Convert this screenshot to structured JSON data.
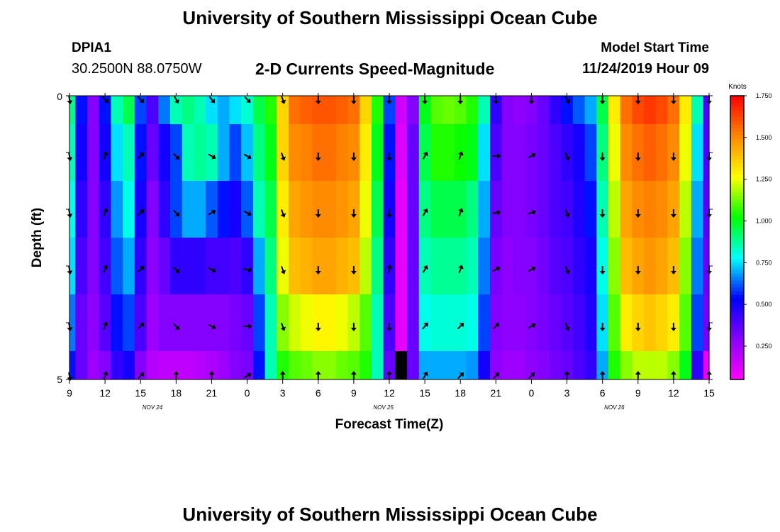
{
  "page": {
    "title": "University of Southern Mississippi Ocean Cube",
    "footer_title": "University of Southern Mississippi Ocean Cube",
    "station": "DPIA1",
    "coords": "30.2500N 88.0750W",
    "plot_title": "2-D Currents Speed-Magnitude",
    "model_start_label": "Model Start Time",
    "model_start_value": "11/24/2019 Hour 09"
  },
  "chart_data": {
    "type": "heatmap",
    "title": "2-D Currents Speed-Magnitude",
    "xlabel": "Forecast Time(Z)",
    "ylabel": "Depth (ft)",
    "x_tick_labels": [
      "9",
      "12",
      "15",
      "18",
      "21",
      "0",
      "3",
      "6",
      "9",
      "12",
      "15",
      "18",
      "21",
      "0",
      "3",
      "6",
      "9",
      "12",
      "15"
    ],
    "x_hours": [
      9,
      12,
      15,
      18,
      21,
      24,
      27,
      30,
      33,
      36,
      39,
      42,
      45,
      48,
      51,
      54,
      57,
      60,
      63
    ],
    "xlim": [
      9,
      63
    ],
    "date_labels": [
      {
        "hour": 16,
        "text": "NOV 24"
      },
      {
        "hour": 35.5,
        "text": "NOV 25"
      },
      {
        "hour": 55,
        "text": "NOV 26"
      }
    ],
    "y_tick_labels": [
      "0",
      "5"
    ],
    "ylim": [
      0,
      5
    ],
    "colorbar": {
      "label": "Knots",
      "ticks": [
        "0.250",
        "0.500",
        "0.750",
        "1.000",
        "1.250",
        "1.500",
        "1.750"
      ],
      "tick_values": [
        0.25,
        0.5,
        0.75,
        1.0,
        1.25,
        1.5,
        1.75
      ],
      "range": [
        0.05,
        1.75
      ],
      "colors": [
        "#ff00ff",
        "#8800ff",
        "#0000ff",
        "#00ffff",
        "#00ff00",
        "#ffff00",
        "#ff8800",
        "#ff0000"
      ]
    },
    "depth_layers": 5,
    "time_hours": [
      9,
      10,
      11,
      12,
      13,
      14,
      15,
      16,
      17,
      18,
      19,
      20,
      21,
      22,
      23,
      24,
      25,
      26,
      27,
      28,
      29,
      30,
      31,
      32,
      33,
      34,
      35,
      36,
      37,
      38,
      39,
      40,
      41,
      42,
      43,
      44,
      45,
      46,
      47,
      48,
      49,
      50,
      51,
      52,
      53,
      54,
      55,
      56,
      57,
      58,
      59,
      60,
      61,
      62,
      63
    ],
    "speed_knots": [
      [
        0.9,
        0.55,
        0.3,
        0.55,
        0.85,
        0.95,
        0.6,
        0.4,
        0.65,
        0.85,
        0.9,
        0.85,
        0.75,
        0.7,
        0.75,
        0.82,
        0.95,
        1.05,
        1.35,
        1.55,
        1.58,
        1.6,
        1.6,
        1.58,
        1.55,
        1.35,
        1.05,
        0.6,
        0.15,
        0.3,
        1.0,
        1.1,
        1.12,
        1.1,
        1.05,
        0.85,
        0.45,
        0.3,
        0.28,
        0.3,
        0.35,
        0.45,
        0.55,
        0.62,
        0.7,
        0.95,
        1.3,
        1.55,
        1.62,
        1.65,
        1.62,
        1.55,
        1.3,
        0.85,
        0.4
      ],
      [
        0.85,
        0.5,
        0.3,
        0.5,
        0.75,
        0.85,
        0.55,
        0.35,
        0.5,
        0.6,
        0.85,
        0.88,
        0.85,
        0.7,
        0.6,
        0.72,
        0.9,
        1.0,
        1.35,
        1.5,
        1.52,
        1.55,
        1.55,
        1.52,
        1.5,
        1.3,
        1.0,
        0.55,
        0.12,
        0.35,
        0.95,
        1.05,
        1.05,
        1.03,
        1.0,
        0.75,
        0.4,
        0.3,
        0.3,
        0.32,
        0.35,
        0.4,
        0.45,
        0.5,
        0.6,
        0.9,
        1.25,
        1.5,
        1.55,
        1.58,
        1.55,
        1.5,
        1.25,
        0.75,
        0.4
      ],
      [
        0.8,
        0.45,
        0.3,
        0.45,
        0.68,
        0.8,
        0.5,
        0.3,
        0.45,
        0.6,
        0.7,
        0.7,
        0.62,
        0.55,
        0.5,
        0.62,
        0.85,
        0.95,
        1.3,
        1.45,
        1.48,
        1.5,
        1.5,
        1.48,
        1.45,
        1.25,
        0.95,
        0.5,
        0.1,
        0.35,
        0.9,
        0.95,
        0.95,
        0.95,
        0.9,
        0.7,
        0.35,
        0.3,
        0.3,
        0.32,
        0.35,
        0.4,
        0.42,
        0.48,
        0.55,
        0.85,
        1.2,
        1.45,
        1.5,
        1.52,
        1.5,
        1.45,
        1.2,
        0.7,
        0.38
      ],
      [
        0.75,
        0.4,
        0.3,
        0.42,
        0.62,
        0.7,
        0.45,
        0.28,
        0.35,
        0.45,
        0.45,
        0.45,
        0.42,
        0.42,
        0.4,
        0.45,
        0.7,
        0.9,
        1.25,
        1.4,
        1.42,
        1.45,
        1.45,
        1.42,
        1.4,
        1.2,
        0.9,
        0.45,
        0.1,
        0.35,
        0.85,
        0.88,
        0.88,
        0.88,
        0.85,
        0.65,
        0.32,
        0.28,
        0.3,
        0.3,
        0.33,
        0.38,
        0.4,
        0.45,
        0.5,
        0.8,
        1.15,
        1.4,
        1.45,
        1.48,
        1.45,
        1.4,
        1.15,
        0.65,
        0.35
      ],
      [
        0.65,
        0.35,
        0.28,
        0.38,
        0.55,
        0.6,
        0.4,
        0.25,
        0.3,
        0.3,
        0.3,
        0.3,
        0.3,
        0.3,
        0.32,
        0.35,
        0.6,
        0.85,
        1.15,
        1.22,
        1.25,
        1.28,
        1.28,
        1.25,
        1.2,
        1.1,
        0.85,
        0.4,
        0.1,
        0.35,
        0.8,
        0.82,
        0.82,
        0.82,
        0.8,
        0.6,
        0.3,
        0.28,
        0.28,
        0.3,
        0.32,
        0.35,
        0.38,
        0.42,
        0.48,
        0.75,
        1.1,
        1.3,
        1.35,
        1.38,
        1.35,
        1.3,
        1.1,
        0.6,
        0.33
      ]
    ],
    "bottom_band": [
      0.55,
      0.35,
      0.25,
      0.3,
      0.45,
      0.5,
      0.3,
      0.2,
      0.18,
      0.18,
      0.18,
      0.2,
      0.22,
      0.25,
      0.3,
      0.32,
      0.55,
      0.85,
      1.05,
      1.1,
      1.12,
      1.15,
      1.15,
      1.12,
      1.1,
      1.05,
      0.85,
      0.35,
      0.0,
      0.35,
      0.7,
      0.7,
      0.7,
      0.7,
      0.68,
      0.5,
      0.28,
      0.25,
      0.25,
      0.28,
      0.3,
      0.33,
      0.35,
      0.4,
      0.45,
      0.7,
      1.05,
      1.15,
      1.2,
      1.2,
      1.2,
      1.15,
      1.0,
      0.45,
      0.1
    ],
    "arrow_times": [
      9,
      12,
      15,
      18,
      21,
      24,
      27,
      30,
      33,
      36,
      39,
      42,
      45,
      48,
      51,
      54,
      57,
      60,
      63
    ],
    "arrow_directions_deg": [
      [
        170,
        135,
        135,
        150,
        140,
        135,
        160,
        180,
        180,
        180,
        180,
        180,
        180,
        180,
        150,
        180,
        180,
        180,
        180
      ],
      [
        170,
        20,
        45,
        135,
        120,
        120,
        160,
        180,
        180,
        180,
        30,
        20,
        90,
        60,
        160,
        180,
        180,
        180,
        180
      ],
      [
        170,
        20,
        45,
        135,
        60,
        120,
        160,
        180,
        180,
        180,
        30,
        20,
        80,
        70,
        160,
        180,
        180,
        180,
        180
      ],
      [
        170,
        20,
        45,
        135,
        120,
        100,
        160,
        180,
        180,
        10,
        30,
        20,
        60,
        60,
        160,
        180,
        180,
        180,
        180
      ],
      [
        170,
        20,
        45,
        135,
        120,
        90,
        160,
        180,
        180,
        180,
        40,
        45,
        45,
        60,
        160,
        180,
        180,
        180,
        180
      ],
      [
        170,
        20,
        45,
        0,
        0,
        60,
        0,
        0,
        0,
        0,
        30,
        45,
        45,
        45,
        0,
        0,
        0,
        0,
        0
      ]
    ]
  }
}
